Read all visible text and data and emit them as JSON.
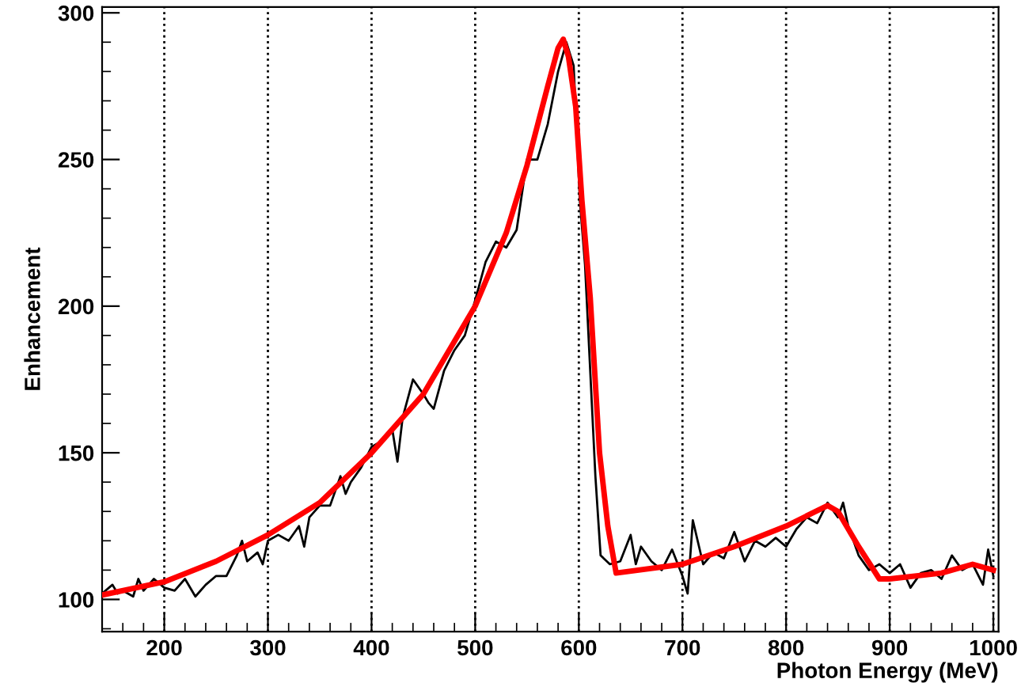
{
  "chart_data": {
    "type": "line",
    "xlabel": "Photon Energy (MeV)",
    "ylabel": "Enhancement",
    "xlim": [
      140,
      1005
    ],
    "ylim": [
      89,
      302
    ],
    "xticks": [
      200,
      300,
      400,
      500,
      600,
      700,
      800,
      900,
      1000
    ],
    "yticks": [
      100,
      150,
      200,
      250,
      300
    ],
    "grid": "x",
    "marker": "none",
    "line_style": "solid",
    "series": [
      {
        "color": "#000000",
        "x": [
          140,
          150,
          155,
          160,
          170,
          175,
          180,
          190,
          200,
          210,
          220,
          230,
          240,
          250,
          260,
          270,
          275,
          280,
          290,
          295,
          300,
          310,
          320,
          330,
          335,
          340,
          350,
          360,
          370,
          375,
          380,
          390,
          400,
          410,
          420,
          425,
          430,
          440,
          450,
          455,
          460,
          470,
          480,
          490,
          500,
          510,
          520,
          530,
          540,
          550,
          560,
          570,
          580,
          588,
          595,
          601,
          606,
          611,
          616,
          621,
          630,
          640,
          650,
          655,
          660,
          670,
          680,
          690,
          700,
          705,
          710,
          720,
          730,
          740,
          750,
          760,
          770,
          780,
          790,
          800,
          810,
          820,
          830,
          840,
          850,
          855,
          860,
          870,
          880,
          890,
          900,
          910,
          920,
          930,
          940,
          950,
          960,
          970,
          980,
          990,
          995,
          1000
        ],
        "values": [
          102,
          105,
          102,
          103,
          101,
          107,
          103,
          107,
          104,
          103,
          107,
          101,
          105,
          108,
          108,
          115,
          120,
          113,
          116,
          112,
          120,
          122,
          120,
          125,
          118,
          128,
          132,
          132,
          142,
          136,
          140,
          145,
          152,
          154,
          158,
          147,
          162,
          175,
          170,
          167,
          165,
          178,
          185,
          190,
          202,
          215,
          222,
          220,
          226,
          250,
          250,
          262,
          280,
          290,
          282,
          236,
          214,
          178,
          142,
          115,
          112,
          113,
          122,
          112,
          118,
          113,
          110,
          117,
          108,
          102,
          127,
          112,
          116,
          114,
          123,
          113,
          120,
          118,
          121,
          118,
          124,
          128,
          126,
          133,
          128,
          133,
          125,
          115,
          110,
          112,
          109,
          112,
          104,
          109,
          110,
          107,
          115,
          110,
          112,
          105,
          117,
          108
        ]
      },
      {
        "color": "#ff0000",
        "x": [
          140,
          200,
          250,
          300,
          350,
          400,
          450,
          500,
          530,
          550,
          570,
          580,
          585,
          590,
          597,
          603,
          611,
          620,
          628,
          636,
          700,
          750,
          800,
          840,
          850,
          870,
          890,
          900,
          950,
          980,
          1000
        ],
        "values": [
          101.5,
          106,
          113,
          122,
          133,
          150,
          170,
          200,
          225,
          248,
          275,
          288,
          291,
          285,
          268,
          236,
          203,
          150,
          125,
          109,
          112,
          118,
          125,
          132,
          130,
          118,
          107,
          107,
          109,
          112,
          110
        ]
      }
    ]
  }
}
